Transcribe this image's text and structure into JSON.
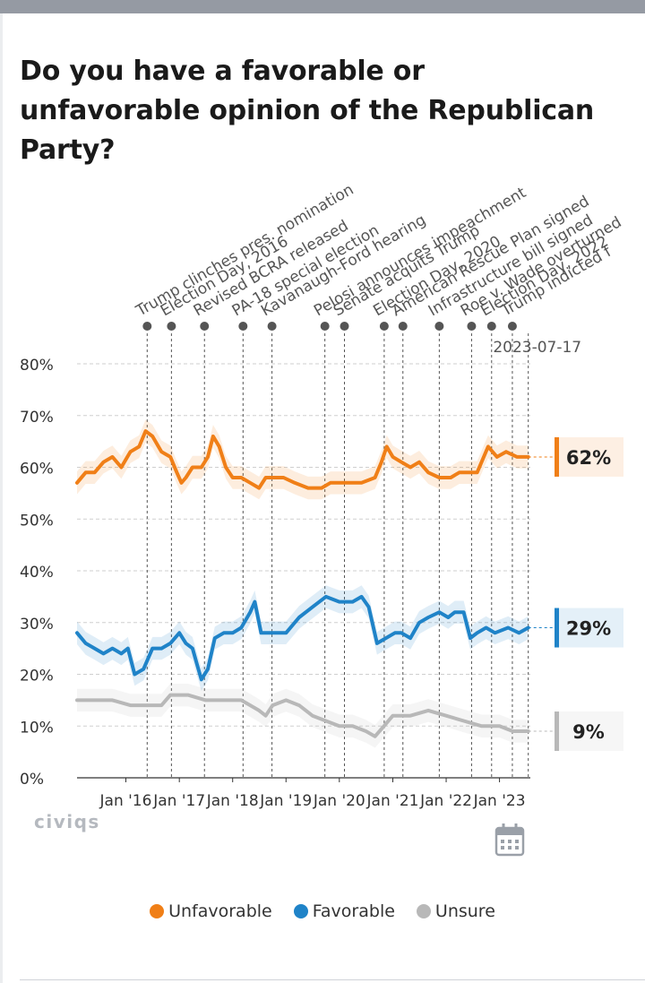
{
  "title": "Do you have a favorable or unfavorable opinion of the Republican Party?",
  "brand": "civiqs",
  "calendar_icon": "calendar-icon",
  "colors": {
    "unfavorable": "#f07f17",
    "favorable": "#1f83c8",
    "unsure": "#b8b8b8"
  },
  "legend": [
    {
      "key": "unfavorable",
      "label": "Unfavorable",
      "color": "#f07f17"
    },
    {
      "key": "favorable",
      "label": "Favorable",
      "color": "#1f83c8"
    },
    {
      "key": "unsure",
      "label": "Unsure",
      "color": "#b8b8b8"
    }
  ],
  "chart_data": {
    "type": "line",
    "ylim": [
      0,
      80
    ],
    "y_ticks": [
      0,
      10,
      20,
      30,
      40,
      50,
      60,
      70,
      80
    ],
    "y_tick_labels": [
      "0%",
      "10%",
      "20%",
      "30%",
      "40%",
      "50%",
      "60%",
      "70%",
      "80%"
    ],
    "x_range": [
      "2015-02-01",
      "2023-07-31"
    ],
    "x_ticks": [
      {
        "date": "2016-01-01",
        "label": "Jan '16"
      },
      {
        "date": "2017-01-01",
        "label": "Jan '17"
      },
      {
        "date": "2018-01-01",
        "label": "Jan '18"
      },
      {
        "date": "2019-01-01",
        "label": "Jan '19"
      },
      {
        "date": "2020-01-01",
        "label": "Jan '20"
      },
      {
        "date": "2021-01-01",
        "label": "Jan '21"
      },
      {
        "date": "2022-01-01",
        "label": "Jan '22"
      },
      {
        "date": "2023-01-01",
        "label": "Jan '23"
      }
    ],
    "cursor": {
      "date": "2023-07-17",
      "label": "2023-07-17"
    },
    "end_labels": [
      {
        "series": "Unfavorable",
        "value": 62,
        "label": "62%"
      },
      {
        "series": "Favorable",
        "value": 29,
        "label": "29%"
      },
      {
        "series": "Unsure",
        "value": 9,
        "label": "9%"
      }
    ],
    "events": [
      {
        "date": "2016-05-26",
        "label": "Trump clinches pres. nomination"
      },
      {
        "date": "2016-11-08",
        "label": "Election Day, 2016"
      },
      {
        "date": "2017-06-22",
        "label": "Revised BCRA released"
      },
      {
        "date": "2018-03-13",
        "label": "PA-18 special election"
      },
      {
        "date": "2018-09-27",
        "label": "Kavanaugh-Ford hearing"
      },
      {
        "date": "2019-09-24",
        "label": "Pelosi announces impeachment"
      },
      {
        "date": "2020-02-05",
        "label": "Senate acquits Trump"
      },
      {
        "date": "2020-11-03",
        "label": "Election Day, 2020"
      },
      {
        "date": "2021-03-11",
        "label": "American Rescue Plan signed"
      },
      {
        "date": "2021-11-15",
        "label": "Infrastructure bill signed"
      },
      {
        "date": "2022-06-24",
        "label": "Roe v. Wade overturned"
      },
      {
        "date": "2022-11-08",
        "label": "Election Day, 2022"
      },
      {
        "date": "2023-03-30",
        "label": "Trump indicted f"
      }
    ],
    "series": [
      {
        "name": "Unfavorable",
        "color": "#f07f17",
        "points": [
          [
            "2015-02-01",
            57
          ],
          [
            "2015-04-01",
            59
          ],
          [
            "2015-06-01",
            59
          ],
          [
            "2015-08-01",
            61
          ],
          [
            "2015-10-01",
            62
          ],
          [
            "2015-12-01",
            60
          ],
          [
            "2016-02-01",
            63
          ],
          [
            "2016-04-01",
            64
          ],
          [
            "2016-05-15",
            67
          ],
          [
            "2016-07-01",
            66
          ],
          [
            "2016-09-01",
            63
          ],
          [
            "2016-11-01",
            62
          ],
          [
            "2016-12-15",
            59
          ],
          [
            "2017-01-15",
            57
          ],
          [
            "2017-02-15",
            58
          ],
          [
            "2017-04-01",
            60
          ],
          [
            "2017-06-01",
            60
          ],
          [
            "2017-07-15",
            62
          ],
          [
            "2017-08-20",
            66
          ],
          [
            "2017-10-01",
            64
          ],
          [
            "2017-11-15",
            60
          ],
          [
            "2018-01-01",
            58
          ],
          [
            "2018-03-01",
            58
          ],
          [
            "2018-05-01",
            57
          ],
          [
            "2018-07-01",
            56
          ],
          [
            "2018-08-15",
            58
          ],
          [
            "2018-10-15",
            58
          ],
          [
            "2018-12-15",
            58
          ],
          [
            "2019-03-01",
            57
          ],
          [
            "2019-06-01",
            56
          ],
          [
            "2019-09-01",
            56
          ],
          [
            "2019-11-01",
            57
          ],
          [
            "2020-01-01",
            57
          ],
          [
            "2020-03-01",
            57
          ],
          [
            "2020-06-01",
            57
          ],
          [
            "2020-09-01",
            58
          ],
          [
            "2020-10-15",
            61
          ],
          [
            "2020-11-20",
            64
          ],
          [
            "2021-01-01",
            62
          ],
          [
            "2021-03-01",
            61
          ],
          [
            "2021-05-01",
            60
          ],
          [
            "2021-07-01",
            61
          ],
          [
            "2021-09-01",
            59
          ],
          [
            "2021-11-15",
            58
          ],
          [
            "2022-02-01",
            58
          ],
          [
            "2022-04-01",
            59
          ],
          [
            "2022-06-01",
            59
          ],
          [
            "2022-08-01",
            59
          ],
          [
            "2022-10-15",
            64
          ],
          [
            "2022-12-15",
            62
          ],
          [
            "2023-02-15",
            63
          ],
          [
            "2023-05-01",
            62
          ],
          [
            "2023-07-17",
            62
          ]
        ]
      },
      {
        "name": "Favorable",
        "color": "#1f83c8",
        "points": [
          [
            "2015-02-01",
            28
          ],
          [
            "2015-04-01",
            26
          ],
          [
            "2015-06-01",
            25
          ],
          [
            "2015-08-01",
            24
          ],
          [
            "2015-10-01",
            25
          ],
          [
            "2015-12-01",
            24
          ],
          [
            "2016-01-15",
            25
          ],
          [
            "2016-03-01",
            20
          ],
          [
            "2016-05-01",
            21
          ],
          [
            "2016-07-01",
            25
          ],
          [
            "2016-09-01",
            25
          ],
          [
            "2016-11-01",
            26
          ],
          [
            "2017-01-01",
            28
          ],
          [
            "2017-02-15",
            26
          ],
          [
            "2017-04-01",
            25
          ],
          [
            "2017-05-01",
            22
          ],
          [
            "2017-06-01",
            19
          ],
          [
            "2017-07-15",
            21
          ],
          [
            "2017-09-01",
            27
          ],
          [
            "2017-11-01",
            28
          ],
          [
            "2018-01-01",
            28
          ],
          [
            "2018-03-01",
            29
          ],
          [
            "2018-05-01",
            32
          ],
          [
            "2018-06-01",
            34
          ],
          [
            "2018-07-15",
            28
          ],
          [
            "2018-10-01",
            28
          ],
          [
            "2019-01-01",
            28
          ],
          [
            "2019-04-01",
            31
          ],
          [
            "2019-07-01",
            33
          ],
          [
            "2019-10-01",
            35
          ],
          [
            "2020-01-01",
            34
          ],
          [
            "2020-04-01",
            34
          ],
          [
            "2020-06-01",
            35
          ],
          [
            "2020-07-20",
            33
          ],
          [
            "2020-09-15",
            26
          ],
          [
            "2020-11-15",
            27
          ],
          [
            "2021-01-15",
            28
          ],
          [
            "2021-03-01",
            28
          ],
          [
            "2021-05-01",
            27
          ],
          [
            "2021-07-01",
            30
          ],
          [
            "2021-09-01",
            31
          ],
          [
            "2021-11-15",
            32
          ],
          [
            "2022-01-15",
            31
          ],
          [
            "2022-03-01",
            32
          ],
          [
            "2022-05-01",
            32
          ],
          [
            "2022-06-15",
            27
          ],
          [
            "2022-08-01",
            28
          ],
          [
            "2022-10-01",
            29
          ],
          [
            "2022-12-01",
            28
          ],
          [
            "2023-03-01",
            29
          ],
          [
            "2023-05-15",
            28
          ],
          [
            "2023-07-17",
            29
          ]
        ]
      },
      {
        "name": "Unsure",
        "color": "#b8b8b8",
        "points": [
          [
            "2015-02-01",
            15
          ],
          [
            "2015-06-01",
            15
          ],
          [
            "2015-10-01",
            15
          ],
          [
            "2016-02-01",
            14
          ],
          [
            "2016-06-01",
            14
          ],
          [
            "2016-09-01",
            14
          ],
          [
            "2016-11-01",
            16
          ],
          [
            "2017-03-01",
            16
          ],
          [
            "2017-07-01",
            15
          ],
          [
            "2017-11-01",
            15
          ],
          [
            "2018-03-01",
            15
          ],
          [
            "2018-05-01",
            14
          ],
          [
            "2018-07-01",
            13
          ],
          [
            "2018-08-15",
            12
          ],
          [
            "2018-10-01",
            14
          ],
          [
            "2019-01-01",
            15
          ],
          [
            "2019-04-01",
            14
          ],
          [
            "2019-07-01",
            12
          ],
          [
            "2019-10-01",
            11
          ],
          [
            "2020-01-01",
            10
          ],
          [
            "2020-04-01",
            10
          ],
          [
            "2020-07-01",
            9
          ],
          [
            "2020-09-01",
            8
          ],
          [
            "2020-11-01",
            10
          ],
          [
            "2021-01-01",
            12
          ],
          [
            "2021-05-01",
            12
          ],
          [
            "2021-09-01",
            13
          ],
          [
            "2022-01-01",
            12
          ],
          [
            "2022-05-01",
            11
          ],
          [
            "2022-09-01",
            10
          ],
          [
            "2023-01-01",
            10
          ],
          [
            "2023-04-01",
            9
          ],
          [
            "2023-07-17",
            9
          ]
        ]
      }
    ]
  }
}
